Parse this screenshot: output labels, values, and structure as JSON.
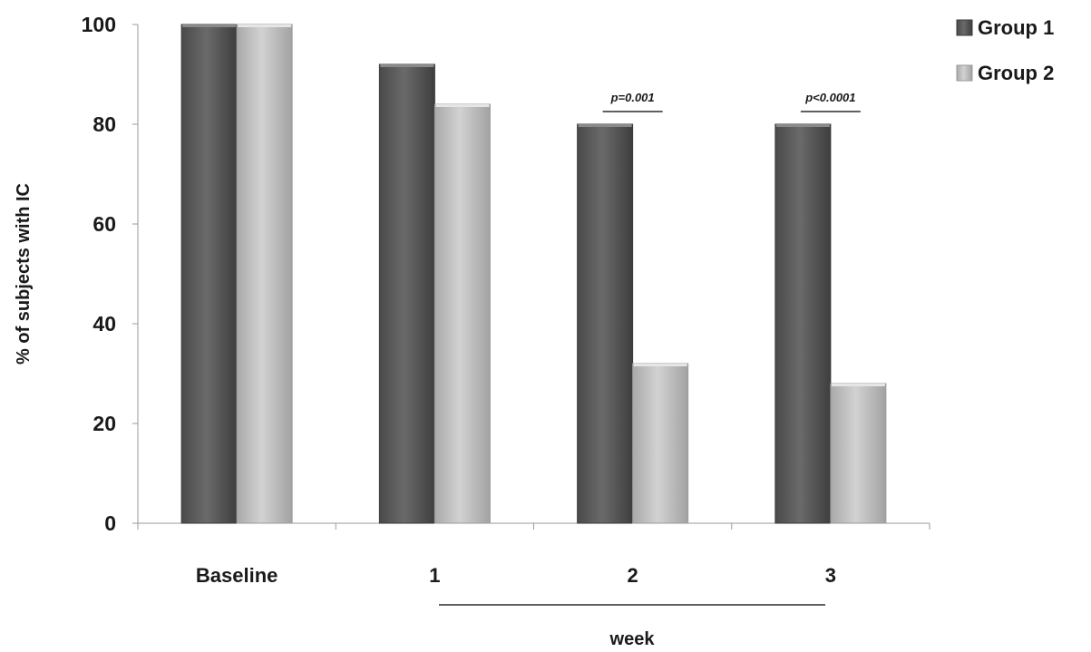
{
  "chart_data": {
    "type": "bar",
    "ylabel": "% of subjects with IC",
    "xlabel": "week",
    "categories": [
      "Baseline",
      "1",
      "2",
      "3"
    ],
    "ylim": [
      0,
      100
    ],
    "yticks": [
      0,
      20,
      40,
      60,
      80,
      100
    ],
    "grid": false,
    "legend_position": "top-right",
    "series": [
      {
        "name": "Group 1",
        "values": [
          100,
          92,
          80,
          80
        ],
        "color": "#5a5a5a"
      },
      {
        "name": "Group 2",
        "values": [
          100,
          84,
          32,
          28
        ],
        "color": "#bdbdbd"
      }
    ],
    "annotations": [
      {
        "category": "2",
        "text": "p=0.001"
      },
      {
        "category": "3",
        "text": "p<0.0001"
      }
    ]
  }
}
